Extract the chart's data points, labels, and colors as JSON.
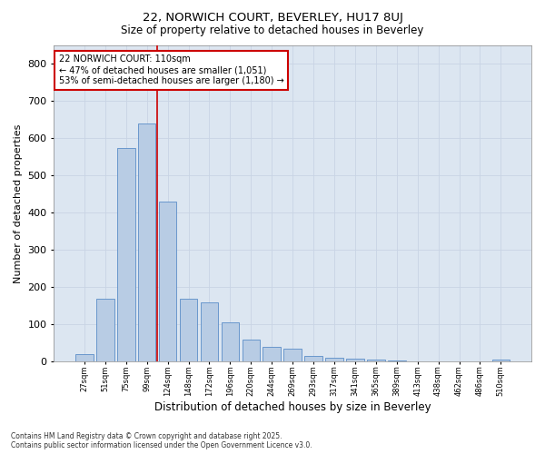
{
  "title1": "22, NORWICH COURT, BEVERLEY, HU17 8UJ",
  "title2": "Size of property relative to detached houses in Beverley",
  "xlabel": "Distribution of detached houses by size in Beverley",
  "ylabel": "Number of detached properties",
  "categories": [
    "27sqm",
    "51sqm",
    "75sqm",
    "99sqm",
    "124sqm",
    "148sqm",
    "172sqm",
    "196sqm",
    "220sqm",
    "244sqm",
    "269sqm",
    "293sqm",
    "317sqm",
    "341sqm",
    "365sqm",
    "389sqm",
    "413sqm",
    "438sqm",
    "462sqm",
    "486sqm",
    "510sqm"
  ],
  "values": [
    20,
    170,
    575,
    640,
    430,
    170,
    160,
    105,
    60,
    40,
    35,
    15,
    10,
    8,
    5,
    3,
    2,
    1,
    0,
    0,
    5
  ],
  "bar_color": "#b8cce4",
  "bar_edge_color": "#5b8dc8",
  "vline_x": 3.5,
  "vline_color": "#cc0000",
  "ylim": [
    0,
    850
  ],
  "yticks": [
    0,
    100,
    200,
    300,
    400,
    500,
    600,
    700,
    800
  ],
  "annotation_title": "22 NORWICH COURT: 110sqm",
  "annotation_line1": "← 47% of detached houses are smaller (1,051)",
  "annotation_line2": "53% of semi-detached houses are larger (1,180) →",
  "annotation_box_facecolor": "#ffffff",
  "annotation_box_edge": "#cc0000",
  "grid_color": "#c8d4e4",
  "plot_bg_color": "#dce6f1",
  "fig_bg_color": "#ffffff",
  "footer1": "Contains HM Land Registry data © Crown copyright and database right 2025.",
  "footer2": "Contains public sector information licensed under the Open Government Licence v3.0."
}
